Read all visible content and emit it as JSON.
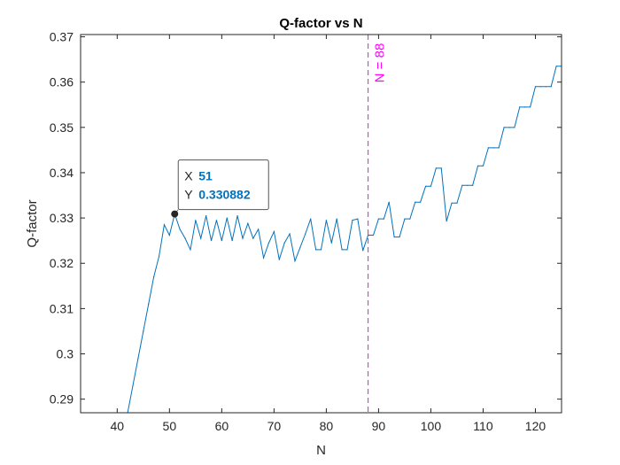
{
  "chart_data": {
    "type": "line",
    "title": "Q-factor vs N",
    "xlabel": "N",
    "ylabel": "Q-factor",
    "xlim": [
      33,
      125
    ],
    "ylim": [
      0.287,
      0.3705
    ],
    "xticks": [
      40,
      50,
      60,
      70,
      80,
      90,
      100,
      110,
      120
    ],
    "yticks": [
      0.29,
      0.3,
      0.31,
      0.32,
      0.33,
      0.34,
      0.35,
      0.36,
      0.37
    ],
    "grid": false,
    "line_color": "#0072BD",
    "series": [
      {
        "x": [
          42,
          43,
          44,
          45,
          46,
          47,
          48,
          49,
          50,
          51,
          52,
          53,
          54,
          55,
          56,
          57,
          58,
          59,
          60,
          61,
          62,
          63,
          64,
          65,
          66,
          67,
          68,
          69,
          70,
          71,
          72,
          73,
          74,
          75,
          76,
          77,
          78,
          79,
          80,
          81,
          82,
          83,
          84,
          85,
          86,
          87,
          88,
          89,
          90,
          91,
          92,
          93,
          94,
          95,
          96,
          97,
          98,
          99,
          100,
          101,
          102,
          103,
          104,
          105,
          106,
          107,
          108,
          109,
          110,
          111,
          112,
          113,
          114,
          115,
          116,
          117,
          118,
          119,
          120,
          121,
          122,
          123,
          124,
          125
        ],
        "y": [
          0.287,
          0.293,
          0.299,
          0.305,
          0.311,
          0.317,
          0.3215,
          0.3285,
          0.3262,
          0.330882,
          0.3275,
          0.3255,
          0.323,
          0.3295,
          0.3255,
          0.3305,
          0.325,
          0.3295,
          0.325,
          0.33,
          0.325,
          0.3305,
          0.3255,
          0.3288,
          0.3255,
          0.3275,
          0.3212,
          0.3245,
          0.327,
          0.3208,
          0.3245,
          0.3265,
          0.3205,
          0.3235,
          0.3265,
          0.3298,
          0.323,
          0.323,
          0.3295,
          0.3245,
          0.3298,
          0.323,
          0.323,
          0.3295,
          0.3298,
          0.3228,
          0.3262,
          0.3262,
          0.3298,
          0.3298,
          0.3335,
          0.3258,
          0.3258,
          0.3298,
          0.3298,
          0.3335,
          0.3335,
          0.337,
          0.337,
          0.341,
          0.341,
          0.3293,
          0.3333,
          0.3333,
          0.3372,
          0.3372,
          0.3372,
          0.3415,
          0.3415,
          0.3455,
          0.3455,
          0.3455,
          0.35,
          0.35,
          0.35,
          0.3545,
          0.3545,
          0.3545,
          0.359,
          0.359,
          0.359,
          0.359,
          0.3635,
          0.3635
        ]
      }
    ],
    "reference_line": {
      "x": 88,
      "label": "N = 88",
      "color": "#FF00FF"
    },
    "datatip": {
      "x_label": "X",
      "x_value": "51",
      "y_label": "Y",
      "y_value": "0.330882",
      "x": 51,
      "y": 0.330882,
      "value_color": "#0072BD"
    }
  }
}
